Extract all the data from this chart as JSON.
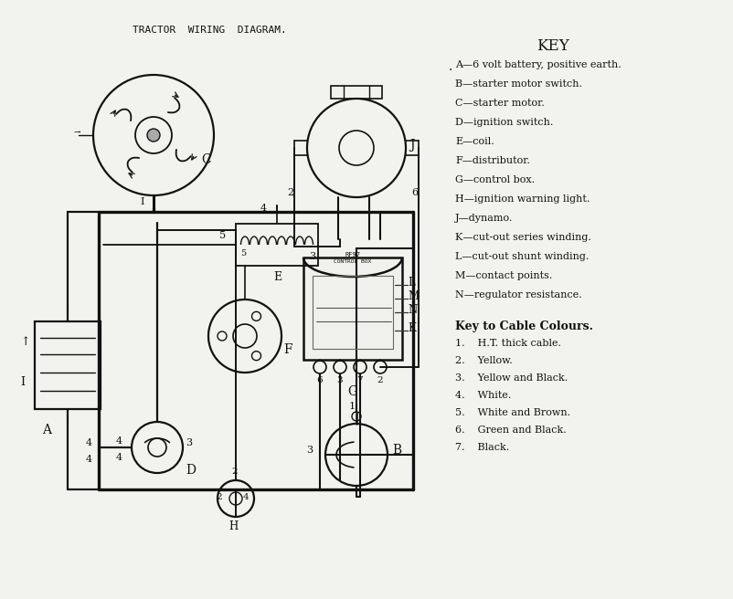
{
  "title": "TRACTOR  WIRING  DIAGRAM.",
  "bg": "#e8e8e2",
  "lc": "#111111",
  "key_title": "KEY",
  "key_items": [
    "A—6 volt battery, positive earth.",
    "B—starter motor switch.",
    "C—starter motor.",
    "D—ignition switch.",
    "E—coil.",
    "F—distributor.",
    "G—control box.",
    "H—ignition warning light.",
    "J—dynamo.",
    "K—cut-out series winding.",
    "L—cut-out shunt winding.",
    "M—contact points.",
    "N—regulator resistance."
  ],
  "cable_title": "Key to Cable Colours.",
  "cable_items": [
    "1.    H.T. thick cable.",
    "2.    Yellow.",
    "3.    Yellow and Black.",
    "4.    White.",
    "5.    White and Brown.",
    "6.    Green and Black.",
    "7.    Black."
  ]
}
